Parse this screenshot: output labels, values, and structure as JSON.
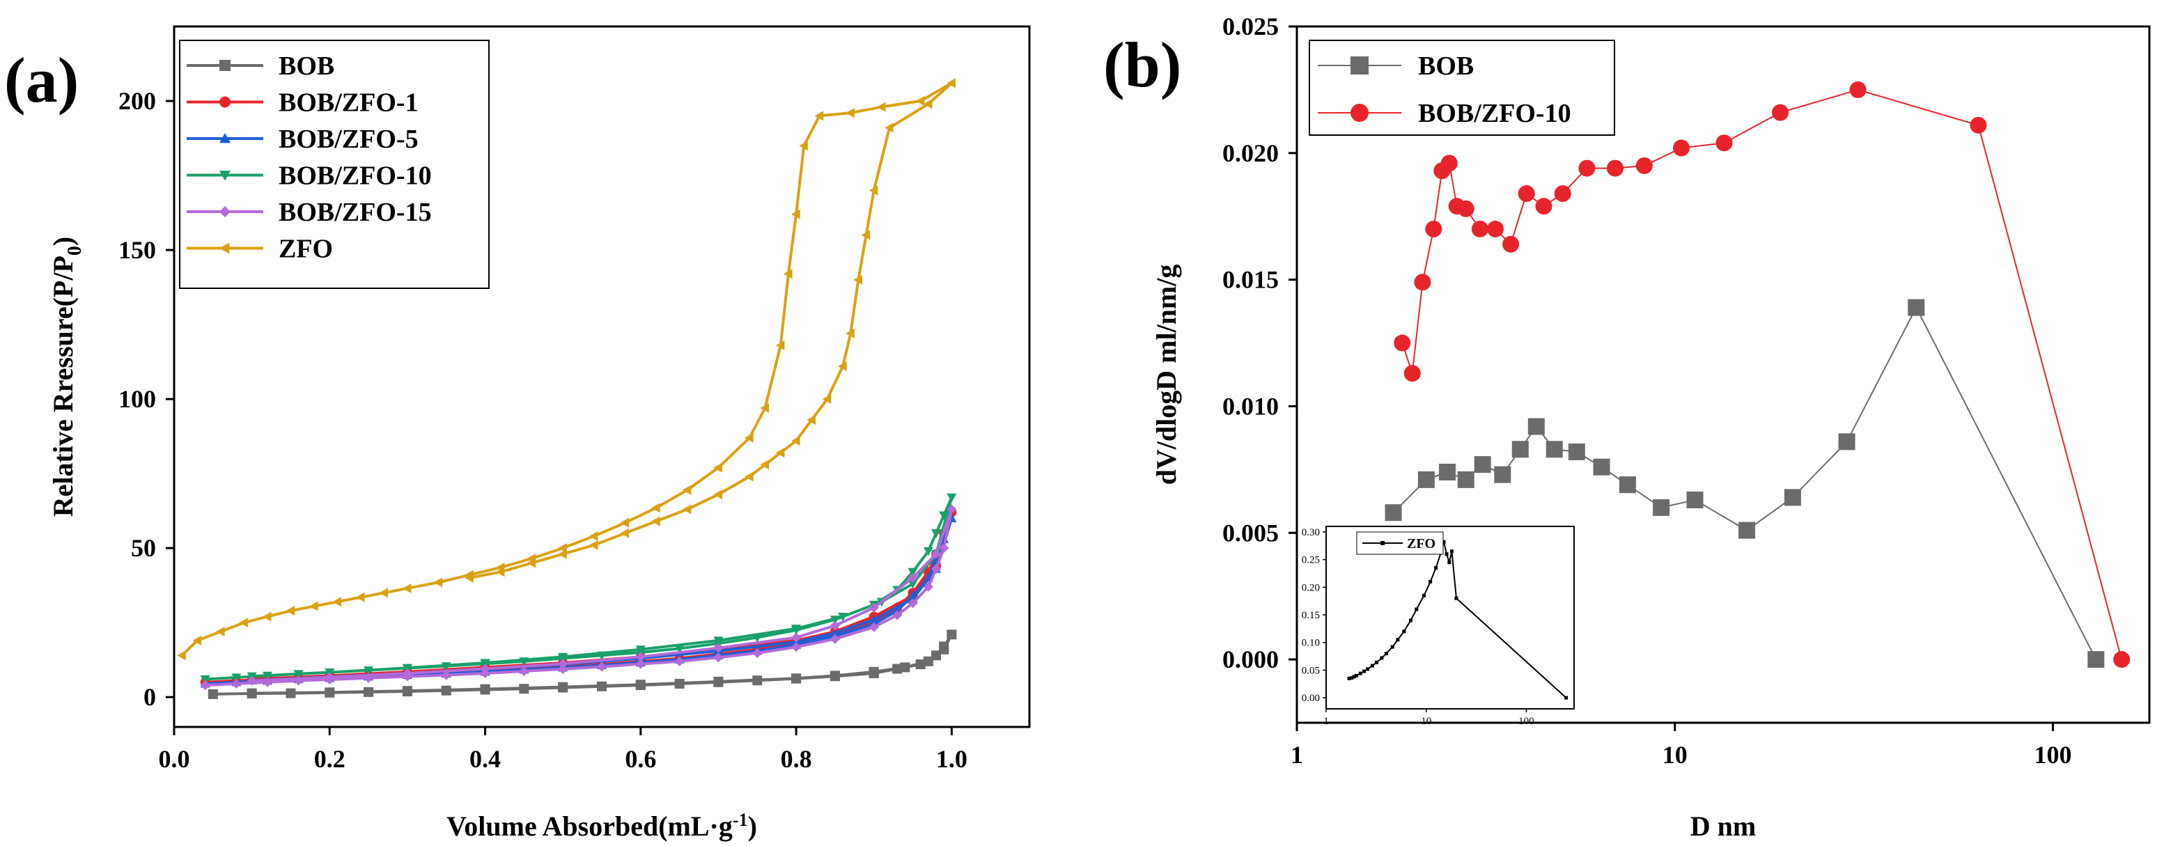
{
  "chart_data": [
    {
      "type": "line",
      "panel_label": "(a)",
      "xlabel": "Volume Absorbed(mL·g",
      "xlabel_sup": "-1",
      "xlabel_close": ")",
      "ylabel": "Relative Rressure(P/P",
      "ylabel_sub": "0",
      "ylabel_close": ")",
      "xlim": [
        0.0,
        1.1
      ],
      "ylim": [
        -10,
        225
      ],
      "xticks": [
        "0.0",
        "0.2",
        "0.4",
        "0.6",
        "0.8",
        "1.0"
      ],
      "yticks": [
        "0",
        "50",
        "100",
        "150",
        "200"
      ],
      "xtick_values": [
        0.0,
        0.2,
        0.4,
        0.6,
        0.8,
        1.0
      ],
      "ytick_values": [
        0,
        50,
        100,
        150,
        200
      ],
      "legend_position": "top-left",
      "series": [
        {
          "name": "BOB",
          "color": "#6b6b6b",
          "marker": "square",
          "x": [
            0.05,
            0.1,
            0.15,
            0.2,
            0.25,
            0.3,
            0.35,
            0.4,
            0.45,
            0.5,
            0.55,
            0.6,
            0.65,
            0.7,
            0.75,
            0.8,
            0.85,
            0.9,
            0.93,
            0.96,
            0.98,
            0.99,
            1.0,
            0.99,
            0.97,
            0.94,
            0.9,
            0.85,
            0.8,
            0.7,
            0.6,
            0.5,
            0.4,
            0.3,
            0.2,
            0.1
          ],
          "y": [
            1,
            1.2,
            1.3,
            1.5,
            1.7,
            1.9,
            2.2,
            2.5,
            2.8,
            3.2,
            3.6,
            4.0,
            4.5,
            5.0,
            5.6,
            6.2,
            7.0,
            8.0,
            9.5,
            11,
            14,
            17,
            21,
            16,
            12,
            10,
            8.5,
            7.2,
            6.3,
            5.2,
            4.2,
            3.4,
            2.7,
            2.1,
            1.6,
            1.3
          ]
        },
        {
          "name": "BOB/ZFO-1",
          "color": "#e8242b",
          "marker": "circle",
          "x": [
            0.04,
            0.08,
            0.12,
            0.16,
            0.2,
            0.25,
            0.3,
            0.35,
            0.4,
            0.45,
            0.5,
            0.55,
            0.6,
            0.65,
            0.7,
            0.75,
            0.8,
            0.85,
            0.9,
            0.93,
            0.95,
            0.97,
            0.98,
            0.99,
            1.0,
            0.98,
            0.95,
            0.9,
            0.85,
            0.8,
            0.7,
            0.6,
            0.5,
            0.4,
            0.3,
            0.2,
            0.1
          ],
          "y": [
            5,
            5.5,
            6,
            6.4,
            6.8,
            7.3,
            7.8,
            8.3,
            8.9,
            9.6,
            10.3,
            11,
            12,
            13,
            14.5,
            16,
            18,
            21,
            25,
            30,
            35,
            42,
            48,
            55,
            62,
            44,
            34,
            27,
            22,
            19,
            16,
            13.5,
            11.5,
            10,
            8.5,
            7.2,
            6
          ]
        },
        {
          "name": "BOB/ZFO-5",
          "color": "#1f5fd6",
          "marker": "triangle-up",
          "x": [
            0.04,
            0.08,
            0.12,
            0.16,
            0.2,
            0.25,
            0.3,
            0.35,
            0.4,
            0.45,
            0.5,
            0.55,
            0.6,
            0.65,
            0.7,
            0.75,
            0.8,
            0.85,
            0.9,
            0.93,
            0.95,
            0.97,
            0.98,
            0.99,
            1.0,
            0.98,
            0.95,
            0.9,
            0.85,
            0.8,
            0.7,
            0.6,
            0.5,
            0.4,
            0.3,
            0.2,
            0.1
          ],
          "y": [
            4.5,
            5,
            5.5,
            6,
            6.4,
            6.9,
            7.4,
            7.9,
            8.5,
            9.2,
            9.9,
            10.7,
            11.6,
            12.6,
            14,
            15.5,
            17.5,
            20.5,
            24.5,
            29,
            34,
            40,
            46,
            53,
            60,
            43,
            33,
            26,
            21.5,
            18.5,
            15.5,
            13,
            11,
            9.5,
            8,
            6.8,
            5.6
          ]
        },
        {
          "name": "BOB/ZFO-10",
          "color": "#1aa06a",
          "marker": "triangle-down",
          "x": [
            0.04,
            0.08,
            0.12,
            0.16,
            0.2,
            0.25,
            0.3,
            0.35,
            0.4,
            0.45,
            0.5,
            0.55,
            0.6,
            0.65,
            0.7,
            0.75,
            0.8,
            0.85,
            0.9,
            0.93,
            0.95,
            0.97,
            0.98,
            0.99,
            1.0,
            0.98,
            0.95,
            0.91,
            0.86,
            0.8,
            0.7,
            0.6,
            0.5,
            0.4,
            0.3,
            0.2,
            0.1
          ],
          "y": [
            6,
            6.6,
            7.2,
            7.8,
            8.3,
            9,
            9.7,
            10.4,
            11.2,
            12,
            13,
            14,
            15,
            16.3,
            18,
            20,
            22.5,
            26,
            31,
            36,
            42,
            49,
            55,
            61,
            67,
            48,
            38,
            32,
            27,
            23,
            19,
            16,
            13.5,
            11.5,
            9.8,
            8.3,
            7
          ]
        },
        {
          "name": "BOB/ZFO-15",
          "color": "#b46ad8",
          "marker": "diamond",
          "x": [
            0.04,
            0.08,
            0.12,
            0.16,
            0.2,
            0.25,
            0.3,
            0.35,
            0.4,
            0.45,
            0.5,
            0.55,
            0.6,
            0.65,
            0.7,
            0.75,
            0.8,
            0.85,
            0.9,
            0.93,
            0.95,
            0.97,
            0.98,
            0.99,
            1.0,
            0.98,
            0.95,
            0.9,
            0.85,
            0.8,
            0.7,
            0.6,
            0.5,
            0.4,
            0.3,
            0.2,
            0.1
          ],
          "y": [
            4,
            4.5,
            5,
            5.5,
            5.9,
            6.4,
            6.9,
            7.4,
            8,
            8.7,
            9.4,
            10.2,
            11.1,
            12,
            13.3,
            14.8,
            16.8,
            19.5,
            23.5,
            27.5,
            31.5,
            37,
            43,
            50,
            63,
            48,
            40,
            30,
            24,
            20,
            16.5,
            13.5,
            11.2,
            9.5,
            8,
            6.7,
            5.5
          ]
        },
        {
          "name": "ZFO",
          "color": "#dba112",
          "marker": "triangle-left",
          "x": [
            0.01,
            0.03,
            0.06,
            0.09,
            0.12,
            0.15,
            0.18,
            0.21,
            0.24,
            0.27,
            0.3,
            0.34,
            0.38,
            0.42,
            0.46,
            0.5,
            0.54,
            0.58,
            0.62,
            0.66,
            0.7,
            0.74,
            0.76,
            0.78,
            0.79,
            0.8,
            0.81,
            0.83,
            0.87,
            0.91,
            0.96,
            1.0,
            0.97,
            0.92,
            0.9,
            0.89,
            0.88,
            0.87,
            0.86,
            0.84,
            0.82,
            0.8,
            0.78,
            0.76,
            0.74,
            0.7,
            0.66,
            0.62,
            0.58,
            0.54,
            0.5,
            0.46,
            0.42,
            0.38
          ],
          "y": [
            14,
            19,
            22,
            25,
            27,
            29,
            30.5,
            32,
            33.5,
            35,
            36.5,
            38.5,
            41,
            43.5,
            46.5,
            50,
            54,
            58.5,
            63.5,
            69.5,
            77,
            87,
            97,
            118,
            142,
            162,
            185,
            195,
            196,
            198,
            200,
            206,
            199,
            191,
            170,
            155,
            140,
            122,
            111,
            100,
            93,
            86,
            82,
            78,
            74,
            68,
            63,
            59,
            55,
            51,
            48,
            45,
            42,
            40
          ]
        }
      ]
    },
    {
      "type": "line",
      "panel_label": "(b)",
      "xlabel": "D nm",
      "ylabel": "dV/dlogD ml/nm/g",
      "xscale": "log",
      "xlim": [
        1,
        180
      ],
      "ylim": [
        -0.0025,
        0.025
      ],
      "xticks": [
        "1",
        "10",
        "100"
      ],
      "xtick_values": [
        1,
        10,
        100
      ],
      "yticks": [
        "0.000",
        "0.005",
        "0.010",
        "0.015",
        "0.020",
        "0.025"
      ],
      "ytick_values": [
        0,
        0.005,
        0.01,
        0.015,
        0.02,
        0.025
      ],
      "legend_position": "top-left",
      "series": [
        {
          "name": "BOB",
          "color": "#6b6b6b",
          "marker": "square",
          "x": [
            1.8,
            2.2,
            2.5,
            2.8,
            3.1,
            3.5,
            3.9,
            4.3,
            4.8,
            5.5,
            6.4,
            7.5,
            9.2,
            11.3,
            15.5,
            20.5,
            28.5,
            43.5,
            130
          ],
          "y": [
            0.0058,
            0.0071,
            0.0074,
            0.0071,
            0.0077,
            0.0073,
            0.0083,
            0.0092,
            0.0083,
            0.0082,
            0.0076,
            0.0069,
            0.006,
            0.0063,
            0.0051,
            0.0064,
            0.0086,
            0.0139,
            0.0
          ]
        },
        {
          "name": "BOB/ZFO-10",
          "color": "#e8242b",
          "marker": "circle",
          "x": [
            1.9,
            2.02,
            2.15,
            2.3,
            2.42,
            2.53,
            2.65,
            2.8,
            3.05,
            3.35,
            3.68,
            4.05,
            4.5,
            5.05,
            5.85,
            6.95,
            8.3,
            10.4,
            13.5,
            19,
            30.5,
            63.5,
            152
          ],
          "y": [
            0.0125,
            0.0113,
            0.0149,
            0.017,
            0.0193,
            0.0196,
            0.0179,
            0.0178,
            0.017,
            0.017,
            0.0164,
            0.0184,
            0.0179,
            0.0184,
            0.0194,
            0.0194,
            0.0195,
            0.0202,
            0.0204,
            0.0216,
            0.0225,
            0.0211,
            0.0
          ]
        }
      ],
      "inset": {
        "legend": "ZFO",
        "color": "#000000",
        "xscale": "log",
        "xlim": [
          1,
          300
        ],
        "ylim": [
          -0.02,
          0.31
        ],
        "xticks": [
          "1",
          "10",
          "100"
        ],
        "xtick_values": [
          1,
          10,
          100
        ],
        "yticks": [
          "0.00",
          "0.05",
          "0.10",
          "0.15",
          "0.20",
          "0.25",
          "0.30"
        ],
        "ytick_values": [
          0,
          0.05,
          0.1,
          0.15,
          0.2,
          0.25,
          0.3
        ],
        "x": [
          1.7,
          1.8,
          1.9,
          2.0,
          2.2,
          2.4,
          2.6,
          2.9,
          3.2,
          3.6,
          4.0,
          4.6,
          5.2,
          6.0,
          7.0,
          8.0,
          9.5,
          11.0,
          12.5,
          14.0,
          15.0,
          16.0,
          17.0,
          18.0,
          20.0,
          250
        ],
        "y": [
          0.035,
          0.036,
          0.038,
          0.04,
          0.044,
          0.048,
          0.052,
          0.058,
          0.064,
          0.072,
          0.08,
          0.092,
          0.105,
          0.12,
          0.14,
          0.16,
          0.185,
          0.21,
          0.235,
          0.262,
          0.282,
          0.26,
          0.245,
          0.265,
          0.18,
          0.0
        ]
      }
    }
  ]
}
